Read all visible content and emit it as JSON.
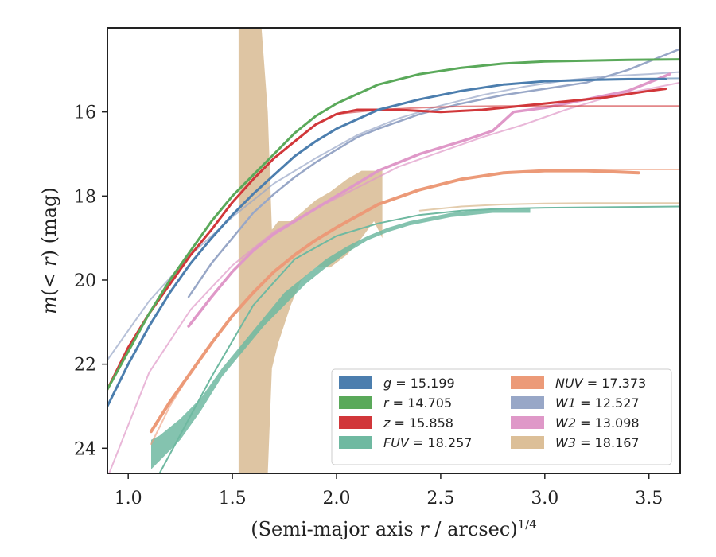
{
  "chart_data": {
    "type": "line",
    "title": "",
    "xlabel": "(Semi-major axis r / arcsec)^1/4",
    "ylabel": "m(< r) (mag)",
    "xlim": [
      0.9,
      3.65
    ],
    "ylim": [
      24.6,
      14.0
    ],
    "y_inverted": true,
    "xticks": [
      "1.0",
      "1.5",
      "2.0",
      "2.5",
      "3.0",
      "3.5"
    ],
    "yticks": [
      "16",
      "18",
      "20",
      "22",
      "24"
    ],
    "grid": false,
    "legend_position": "lower-right",
    "legend": [
      {
        "key": "g",
        "text": "g = 15.199",
        "color": "#4c7eae"
      },
      {
        "key": "r",
        "text": "r = 14.705",
        "color": "#5aa95a"
      },
      {
        "key": "z",
        "text": "z = 15.858",
        "color": "#d1373a"
      },
      {
        "key": "FUV",
        "text": "FUV = 18.257",
        "color": "#6fb9a1"
      },
      {
        "key": "NUV",
        "text": "NUV = 17.373",
        "color": "#ec9a78"
      },
      {
        "key": "W1",
        "text": "W1 = 12.527",
        "color": "#98a7c7"
      },
      {
        "key": "W2",
        "text": "W2 = 13.098",
        "color": "#df98c8"
      },
      {
        "key": "W3",
        "text": "W3 = 18.167",
        "color": "#dcbf98"
      }
    ],
    "series": [
      {
        "key": "W3",
        "type": "band",
        "color": "#d8bb93",
        "opacity": 0.85,
        "x": [
          1.53,
          1.53,
          1.56,
          1.6,
          1.64,
          1.67,
          1.69,
          1.72,
          1.78,
          1.83,
          1.9,
          1.97,
          2.05,
          2.12,
          2.18,
          2.22,
          2.22,
          2.18,
          2.12,
          2.05,
          1.97,
          1.9,
          1.83,
          1.78,
          1.72,
          1.69,
          1.67,
          1.64,
          1.6,
          1.56
        ],
        "y": [
          24.6,
          14.0,
          14.0,
          14.0,
          14.0,
          16.0,
          18.8,
          18.6,
          18.6,
          18.4,
          18.1,
          17.9,
          17.6,
          17.4,
          17.4,
          17.4,
          19.0,
          18.6,
          19.0,
          19.4,
          19.7,
          19.7,
          20.0,
          20.6,
          21.5,
          22.1,
          24.6,
          24.6,
          24.6,
          24.6
        ]
      },
      {
        "key": "FUV",
        "type": "band",
        "color": "#6fb9a1",
        "opacity": 0.85,
        "x": [
          1.11,
          1.15,
          1.25,
          1.35,
          1.45,
          1.55,
          1.65,
          1.75,
          1.85,
          1.95,
          2.05,
          2.15,
          2.25,
          2.35,
          2.45,
          2.55,
          2.65,
          2.75,
          2.85,
          2.93,
          2.93,
          2.85,
          2.75,
          2.65,
          2.55,
          2.45,
          2.35,
          2.25,
          2.15,
          2.05,
          1.95,
          1.85,
          1.75,
          1.65,
          1.55,
          1.45,
          1.35,
          1.25,
          1.15,
          1.11
        ],
        "y": [
          23.8,
          23.7,
          23.3,
          22.8,
          22.1,
          21.5,
          20.9,
          20.3,
          19.9,
          19.5,
          19.2,
          18.95,
          18.75,
          18.6,
          18.5,
          18.4,
          18.35,
          18.3,
          18.3,
          18.3,
          18.4,
          18.4,
          18.4,
          18.45,
          18.5,
          18.6,
          18.7,
          18.85,
          19.05,
          19.35,
          19.7,
          20.1,
          20.6,
          21.1,
          21.7,
          22.3,
          23.1,
          23.8,
          24.3,
          24.5
        ]
      },
      {
        "key": "FUV_model",
        "type": "line",
        "color": "#6fb9a1",
        "width": 2,
        "x": [
          1.15,
          1.4,
          1.6,
          1.8,
          2.0,
          2.2,
          2.4,
          2.6,
          2.8,
          3.0,
          3.2,
          3.4,
          3.65
        ],
        "y": [
          24.6,
          22.3,
          20.6,
          19.5,
          18.95,
          18.65,
          18.45,
          18.35,
          18.3,
          18.28,
          18.27,
          18.26,
          18.25
        ]
      },
      {
        "key": "NUV_model",
        "type": "line",
        "color": "#ec9a78",
        "width": 2,
        "opacity": 0.6,
        "x": [
          1.11,
          1.2,
          1.3,
          1.4,
          1.5,
          1.6,
          1.7,
          1.8,
          1.9,
          2.0,
          2.2,
          2.4,
          2.6,
          2.8,
          3.0,
          3.2,
          3.4,
          3.65
        ],
        "y": [
          23.9,
          23.0,
          22.2,
          21.5,
          20.85,
          20.3,
          19.8,
          19.4,
          19.05,
          18.75,
          18.2,
          17.85,
          17.6,
          17.45,
          17.4,
          17.38,
          17.37,
          17.37
        ]
      },
      {
        "key": "NUV",
        "type": "line",
        "color": "#ec9a78",
        "width": 4,
        "x": [
          1.11,
          1.2,
          1.3,
          1.4,
          1.5,
          1.6,
          1.7,
          1.8,
          1.9,
          2.0,
          2.2,
          2.4,
          2.6,
          2.8,
          3.0,
          3.2,
          3.45
        ],
        "y": [
          23.6,
          22.9,
          22.2,
          21.5,
          20.85,
          20.3,
          19.8,
          19.4,
          19.05,
          18.75,
          18.2,
          17.85,
          17.6,
          17.45,
          17.4,
          17.4,
          17.45
        ]
      },
      {
        "key": "W3_model",
        "type": "line",
        "color": "#dcbf98",
        "width": 2,
        "opacity": 0.8,
        "x": [
          2.4,
          2.6,
          2.8,
          3.0,
          3.2,
          3.4,
          3.65
        ],
        "y": [
          18.35,
          18.25,
          18.2,
          18.18,
          18.17,
          18.17,
          18.17
        ]
      },
      {
        "key": "W1_model",
        "type": "line",
        "color": "#98a7c7",
        "width": 2,
        "opacity": 0.7,
        "x": [
          0.9,
          1.1,
          1.3,
          1.5,
          1.7,
          1.9,
          2.1,
          2.3,
          2.5,
          2.7,
          2.9,
          3.1,
          3.3,
          3.5,
          3.65
        ],
        "y": [
          21.9,
          20.5,
          19.4,
          18.5,
          17.7,
          17.1,
          16.55,
          16.15,
          15.85,
          15.6,
          15.4,
          15.25,
          15.15,
          15.1,
          15.05
        ]
      },
      {
        "key": "W1",
        "type": "line",
        "color": "#98a7c7",
        "width": 2.5,
        "x": [
          1.29,
          1.4,
          1.5,
          1.6,
          1.7,
          1.8,
          1.9,
          2.0,
          2.1,
          2.2,
          2.4,
          2.6,
          2.8,
          3.0,
          3.2,
          3.4,
          3.5,
          3.65
        ],
        "y": [
          20.4,
          19.6,
          19.0,
          18.4,
          17.95,
          17.55,
          17.2,
          16.9,
          16.6,
          16.4,
          16.05,
          15.8,
          15.6,
          15.45,
          15.3,
          15.0,
          14.8,
          14.5
        ]
      },
      {
        "key": "W2_model",
        "type": "line",
        "color": "#df98c8",
        "width": 2,
        "opacity": 0.7,
        "x": [
          0.9,
          1.1,
          1.3,
          1.5,
          1.7,
          1.9,
          2.1,
          2.3,
          2.5,
          2.7,
          2.9,
          3.1,
          3.3,
          3.5,
          3.65
        ],
        "y": [
          24.7,
          22.2,
          20.7,
          19.65,
          18.85,
          18.3,
          17.8,
          17.3,
          16.95,
          16.6,
          16.3,
          15.95,
          15.65,
          15.45,
          15.3
        ]
      },
      {
        "key": "W2",
        "type": "line",
        "color": "#df98c8",
        "width": 3.5,
        "x": [
          1.29,
          1.4,
          1.5,
          1.6,
          1.7,
          1.8,
          1.9,
          2.0,
          2.2,
          2.4,
          2.6,
          2.75,
          2.85,
          3.0,
          3.2,
          3.4,
          3.6
        ],
        "y": [
          21.1,
          20.4,
          19.8,
          19.3,
          18.9,
          18.6,
          18.3,
          18.0,
          17.4,
          17.0,
          16.7,
          16.45,
          16.0,
          15.9,
          15.7,
          15.5,
          15.1
        ]
      },
      {
        "key": "z_model",
        "type": "line",
        "color": "#d1373a",
        "width": 2,
        "opacity": 0.6,
        "x": [
          2.0,
          2.2,
          2.4,
          2.6,
          2.8,
          3.0,
          3.2,
          3.4,
          3.65
        ],
        "y": [
          16.05,
          15.95,
          15.9,
          15.87,
          15.86,
          15.86,
          15.86,
          15.86,
          15.86
        ]
      },
      {
        "key": "z",
        "type": "line",
        "color": "#d1373a",
        "width": 3,
        "x": [
          0.9,
          1.0,
          1.1,
          1.2,
          1.3,
          1.4,
          1.5,
          1.6,
          1.7,
          1.8,
          1.9,
          2.0,
          2.1,
          2.3,
          2.5,
          2.7,
          2.9,
          3.1,
          3.3,
          3.5,
          3.58
        ],
        "y": [
          22.6,
          21.6,
          20.8,
          20.1,
          19.4,
          18.8,
          18.15,
          17.6,
          17.1,
          16.7,
          16.3,
          16.05,
          15.95,
          15.95,
          16.0,
          15.95,
          15.85,
          15.75,
          15.65,
          15.5,
          15.45
        ]
      },
      {
        "key": "g_model",
        "type": "line",
        "color": "#4c7eae",
        "width": 2,
        "opacity": 0.6,
        "x": [
          3.2,
          3.4,
          3.65
        ],
        "y": [
          15.23,
          15.21,
          15.2
        ]
      },
      {
        "key": "g",
        "type": "line",
        "color": "#4c7eae",
        "width": 3,
        "x": [
          0.9,
          1.0,
          1.1,
          1.2,
          1.3,
          1.4,
          1.5,
          1.6,
          1.7,
          1.8,
          1.9,
          2.0,
          2.2,
          2.4,
          2.6,
          2.8,
          3.0,
          3.2,
          3.4,
          3.58
        ],
        "y": [
          23.0,
          22.0,
          21.1,
          20.3,
          19.6,
          19.0,
          18.45,
          17.95,
          17.5,
          17.05,
          16.7,
          16.4,
          15.95,
          15.7,
          15.5,
          15.35,
          15.27,
          15.24,
          15.22,
          15.22
        ]
      },
      {
        "key": "r",
        "type": "line",
        "color": "#5aa95a",
        "width": 3,
        "x": [
          0.9,
          1.0,
          1.1,
          1.2,
          1.3,
          1.4,
          1.5,
          1.6,
          1.7,
          1.8,
          1.9,
          2.0,
          2.2,
          2.4,
          2.6,
          2.8,
          3.0,
          3.2,
          3.4,
          3.65
        ],
        "y": [
          22.6,
          21.7,
          20.8,
          20.0,
          19.3,
          18.6,
          18.0,
          17.5,
          17.0,
          16.5,
          16.1,
          15.8,
          15.35,
          15.1,
          14.95,
          14.85,
          14.8,
          14.78,
          14.76,
          14.75
        ]
      }
    ]
  }
}
